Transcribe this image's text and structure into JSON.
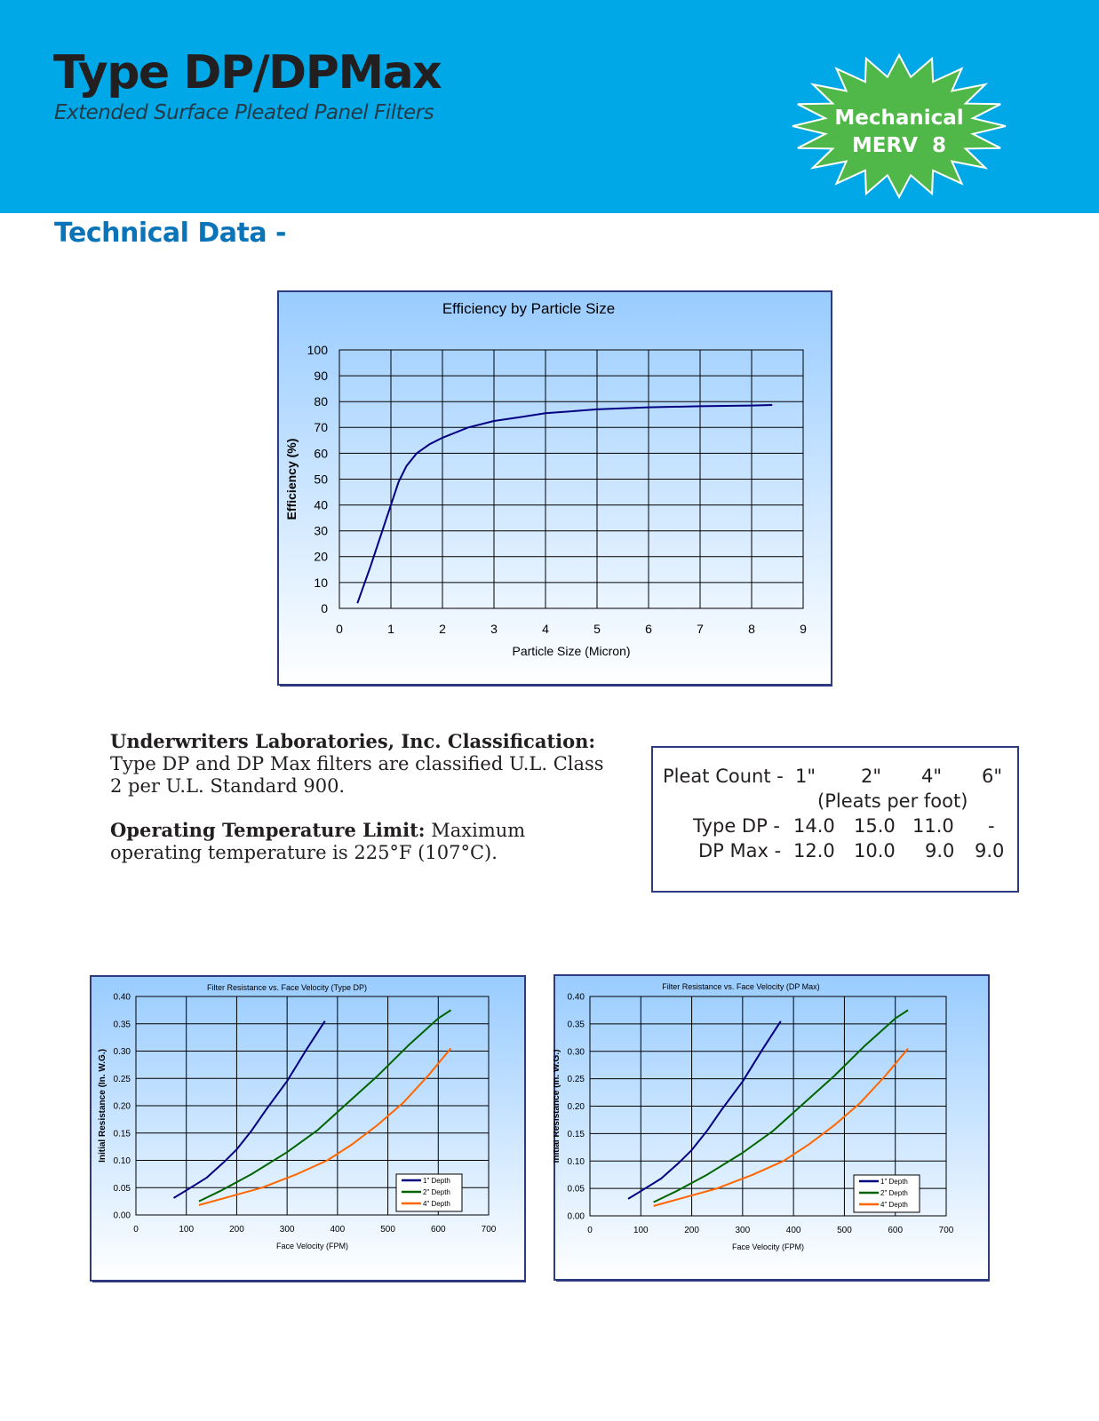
{
  "header": {
    "title": "Type DP/DPMax",
    "subtitle": "Extended Surface Pleated Panel Filters",
    "badge": {
      "line1": "Mechanical",
      "line2": "MERV  8",
      "color": "#50b848"
    },
    "background": "#00a8e8"
  },
  "section_title": "Technical Data -",
  "info": {
    "ul_heading": "Underwriters Laboratories, Inc. Classification:",
    "ul_text": " Type DP and DP Max filters are classified U.L. Class 2 per U.L. Standard 900.",
    "temp_heading": "Operating Temperature Limit:",
    "temp_text": " Maximum operating temperature is 225°F (107°C)."
  },
  "pleat_table": {
    "label": "Pleat Count -",
    "depths": [
      "1\"",
      "2\"",
      "4\"",
      "6\""
    ],
    "unit": "(Pleats per foot)",
    "rows": [
      {
        "name": "Type DP -",
        "values": [
          "14.0",
          "15.0",
          "11.0",
          "-"
        ]
      },
      {
        "name": "DP Max -",
        "values": [
          "12.0",
          "10.0",
          "9.0",
          "9.0"
        ]
      }
    ]
  },
  "chart_data": [
    {
      "type": "line",
      "title": "Efficiency by Particle Size",
      "xlabel": "Particle Size (Micron)",
      "ylabel": "Efficiency (%)",
      "xlim": [
        0,
        9
      ],
      "ylim": [
        0,
        100
      ],
      "xticks": [
        "0",
        "1",
        "2",
        "3",
        "4",
        "5",
        "6",
        "7",
        "8",
        "9"
      ],
      "yticks": [
        "0",
        "10",
        "20",
        "30",
        "40",
        "50",
        "60",
        "70",
        "80",
        "90",
        "100"
      ],
      "grid": true,
      "legend": "none",
      "series": [
        {
          "color": "#000080",
          "x": [
            0.35,
            0.6,
            0.8,
            1.0,
            1.15,
            1.3,
            1.5,
            1.75,
            2.0,
            2.5,
            3.0,
            3.5,
            4.0,
            5.0,
            6.0,
            7.0,
            8.0,
            8.4
          ],
          "y": [
            2,
            16,
            28,
            40,
            49,
            55,
            60,
            63.5,
            66,
            70,
            72.5,
            74,
            75.5,
            77,
            77.8,
            78.2,
            78.5,
            78.7
          ]
        }
      ]
    },
    {
      "type": "line",
      "title": "Filter Resistance vs. Face Velocity (Type DP)",
      "xlabel": "Face Velocity (FPM)",
      "ylabel": "Initial Resistance (In. W.G.)",
      "xlim": [
        0,
        700
      ],
      "ylim": [
        0,
        0.4
      ],
      "xticks": [
        "0",
        "100",
        "200",
        "300",
        "400",
        "500",
        "600",
        "700"
      ],
      "yticks": [
        "0.00",
        "0.05",
        "0.10",
        "0.15",
        "0.20",
        "0.25",
        "0.30",
        "0.35",
        "0.40"
      ],
      "grid": true,
      "legend": "bottom-right",
      "series": [
        {
          "name": "1\" Depth",
          "color": "#000080",
          "x": [
            75,
            100,
            140,
            175,
            200,
            230,
            260,
            300,
            340,
            375
          ],
          "y": [
            0.031,
            0.045,
            0.068,
            0.097,
            0.12,
            0.155,
            0.195,
            0.245,
            0.305,
            0.355
          ]
        },
        {
          "name": "2\" Depth",
          "color": "#006400",
          "x": [
            125,
            170,
            230,
            300,
            360,
            420,
            480,
            540,
            600,
            625
          ],
          "y": [
            0.025,
            0.045,
            0.075,
            0.115,
            0.155,
            0.205,
            0.255,
            0.31,
            0.36,
            0.375
          ]
        },
        {
          "name": "4\" Depth",
          "color": "#ff6600",
          "x": [
            125,
            180,
            250,
            320,
            380,
            430,
            480,
            530,
            580,
            625
          ],
          "y": [
            0.018,
            0.032,
            0.05,
            0.075,
            0.1,
            0.13,
            0.165,
            0.205,
            0.255,
            0.305
          ]
        }
      ]
    },
    {
      "type": "line",
      "title": "Filter Resistance vs. Face Velocity (DP Max)",
      "xlabel": "Face Velocity (FPM)",
      "ylabel": "Initial Resistance (In. W.G.)",
      "xlim": [
        0,
        700
      ],
      "ylim": [
        0,
        0.4
      ],
      "xticks": [
        "0",
        "100",
        "200",
        "300",
        "400",
        "500",
        "600",
        "700"
      ],
      "yticks": [
        "0.00",
        "0.05",
        "0.10",
        "0.15",
        "0.20",
        "0.25",
        "0.30",
        "0.35",
        "0.40"
      ],
      "grid": true,
      "legend": "bottom-right",
      "series": [
        {
          "name": "1\" Depth",
          "color": "#000080",
          "x": [
            75,
            100,
            140,
            175,
            200,
            230,
            260,
            300,
            340,
            375
          ],
          "y": [
            0.031,
            0.045,
            0.068,
            0.097,
            0.12,
            0.155,
            0.195,
            0.245,
            0.305,
            0.355
          ]
        },
        {
          "name": "2\" Depth",
          "color": "#006400",
          "x": [
            125,
            170,
            230,
            300,
            360,
            420,
            480,
            540,
            600,
            625
          ],
          "y": [
            0.025,
            0.045,
            0.075,
            0.115,
            0.155,
            0.205,
            0.255,
            0.31,
            0.36,
            0.375
          ]
        },
        {
          "name": "4\" Depth",
          "color": "#ff6600",
          "x": [
            125,
            180,
            250,
            320,
            380,
            430,
            480,
            530,
            580,
            625
          ],
          "y": [
            0.018,
            0.032,
            0.05,
            0.075,
            0.1,
            0.13,
            0.165,
            0.205,
            0.255,
            0.305
          ]
        }
      ]
    }
  ]
}
